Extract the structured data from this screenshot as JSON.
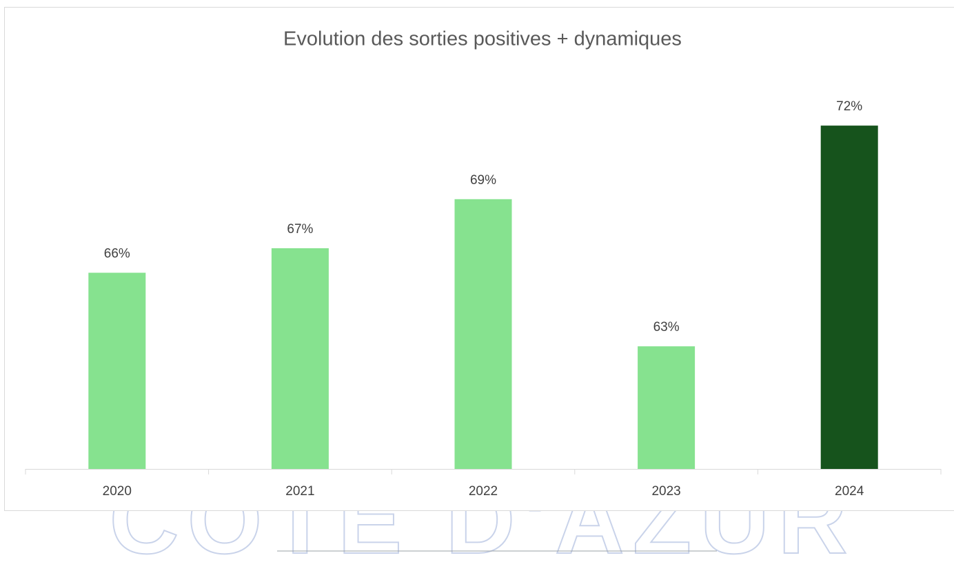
{
  "watermark": "COTE D'AZUR",
  "chart_data": {
    "type": "bar",
    "title": "Evolution des sorties positives + dynamiques",
    "categories": [
      "2020",
      "2021",
      "2022",
      "2023",
      "2024"
    ],
    "values": [
      66,
      67,
      69,
      63,
      72
    ],
    "value_labels": [
      "66%",
      "67%",
      "69%",
      "63%",
      "72%"
    ],
    "colors": [
      "#86e28f",
      "#86e28f",
      "#86e28f",
      "#86e28f",
      "#16531c"
    ],
    "ylim": [
      58,
      74
    ]
  }
}
